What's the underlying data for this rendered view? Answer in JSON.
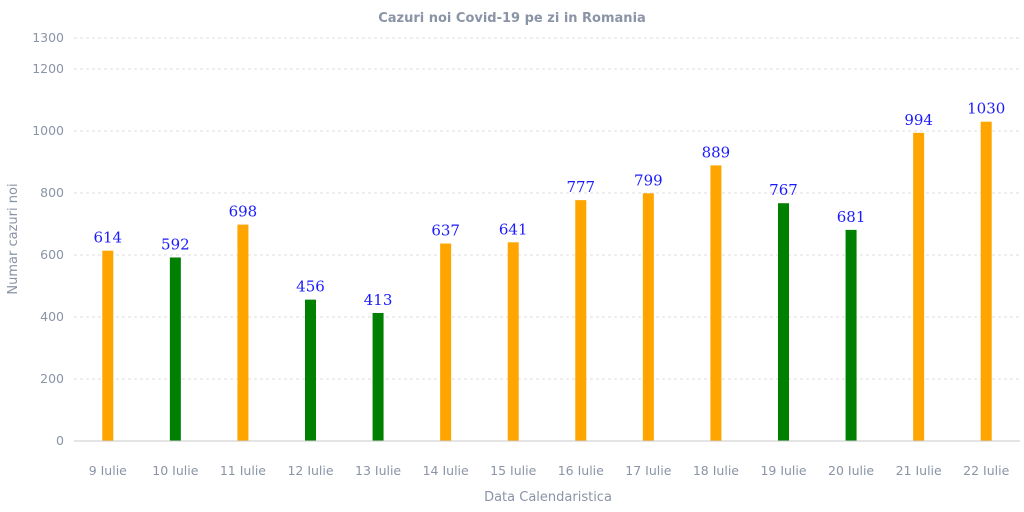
{
  "chart_data": {
    "type": "bar",
    "title": "Cazuri noi Covid-19 pe zi in Romania",
    "xlabel": "Data Calendaristica",
    "ylabel": "Numar cazuri noi",
    "ylim": [
      0,
      1300
    ],
    "yticks": [
      0,
      200,
      400,
      600,
      800,
      1000,
      1200,
      1300
    ],
    "categories": [
      "9 Iulie",
      "10 Iulie",
      "11 Iulie",
      "12 Iulie",
      "13 Iulie",
      "14 Iulie",
      "15 Iulie",
      "16 Iulie",
      "17 Iulie",
      "18 Iulie",
      "19 Iulie",
      "20 Iulie",
      "21 Iulie",
      "22 Iulie"
    ],
    "values": [
      614,
      592,
      698,
      456,
      413,
      637,
      641,
      777,
      799,
      889,
      767,
      681,
      994,
      1030
    ],
    "bar_colors": [
      "#ffa500",
      "#008000",
      "#ffa500",
      "#008000",
      "#008000",
      "#ffa500",
      "#ffa500",
      "#ffa500",
      "#ffa500",
      "#ffa500",
      "#008000",
      "#008000",
      "#ffa500",
      "#ffa500"
    ],
    "grid": true,
    "legend": "none"
  }
}
